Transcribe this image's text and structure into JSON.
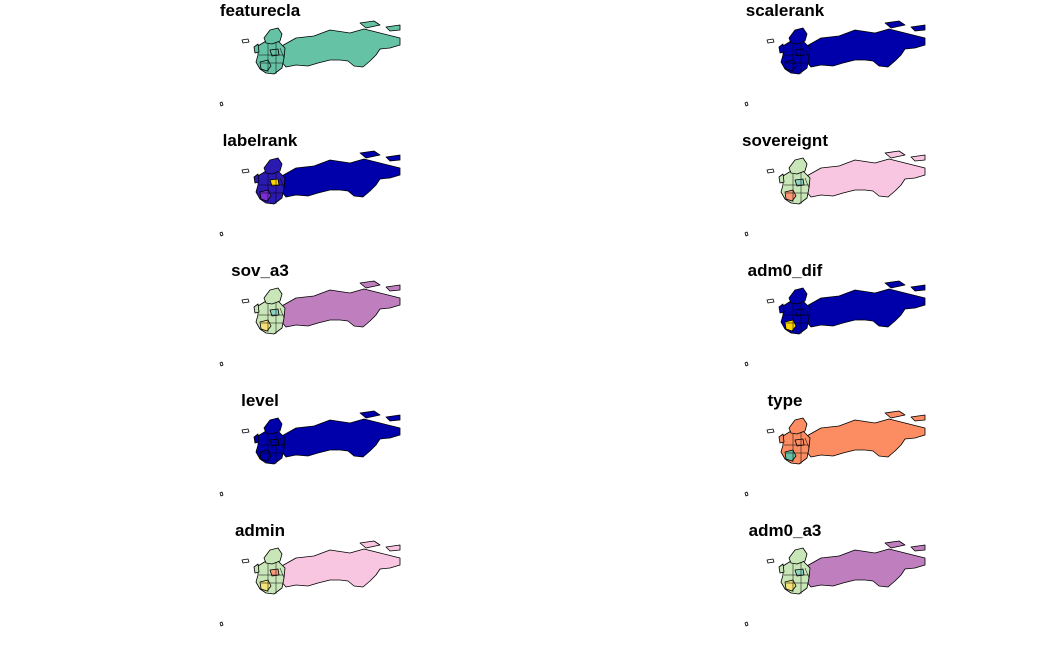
{
  "panels": [
    {
      "title": "featurecla",
      "russia_fill": "#66c2a5",
      "europe_fill": "#66c2a5",
      "accent_fill": "#66c2a5",
      "accent2_fill": "#66c2a5"
    },
    {
      "title": "scalerank",
      "russia_fill": "#0000aa",
      "europe_fill": "#0000aa",
      "accent_fill": "#0000aa",
      "accent2_fill": "#0000aa"
    },
    {
      "title": "labelrank",
      "russia_fill": "#0000aa",
      "europe_fill": "#2a1ab0",
      "accent_fill": "#7b2ed6",
      "accent2_fill": "#ffd700"
    },
    {
      "title": "sovereignt",
      "russia_fill": "#f8c6e0",
      "europe_fill": "#c9e6b8",
      "accent_fill": "#fc9a7a",
      "accent2_fill": "#8fd3c1"
    },
    {
      "title": "sov_a3",
      "russia_fill": "#bf7fbf",
      "europe_fill": "#c9e6b8",
      "accent_fill": "#f4e27a",
      "accent2_fill": "#8fd3c1"
    },
    {
      "title": "adm0_dif",
      "russia_fill": "#0000aa",
      "europe_fill": "#0000aa",
      "accent_fill": "#ffd700",
      "accent2_fill": "#0000aa"
    },
    {
      "title": "level",
      "russia_fill": "#0000aa",
      "europe_fill": "#0000aa",
      "accent_fill": "#0000aa",
      "accent2_fill": "#0000aa"
    },
    {
      "title": "type",
      "russia_fill": "#fc8d62",
      "europe_fill": "#fc8d62",
      "accent_fill": "#66c2a5",
      "accent2_fill": "#fc8d62"
    },
    {
      "title": "admin",
      "russia_fill": "#f8c6e0",
      "europe_fill": "#c9e6b8",
      "accent_fill": "#f4e27a",
      "accent2_fill": "#fc9a7a"
    },
    {
      "title": "adm0_a3",
      "russia_fill": "#bf7fbf",
      "europe_fill": "#c9e6b8",
      "accent_fill": "#f4e27a",
      "accent2_fill": "#8fd3c1"
    }
  ],
  "colors": {
    "border": "#000000",
    "background": "#ffffff"
  }
}
